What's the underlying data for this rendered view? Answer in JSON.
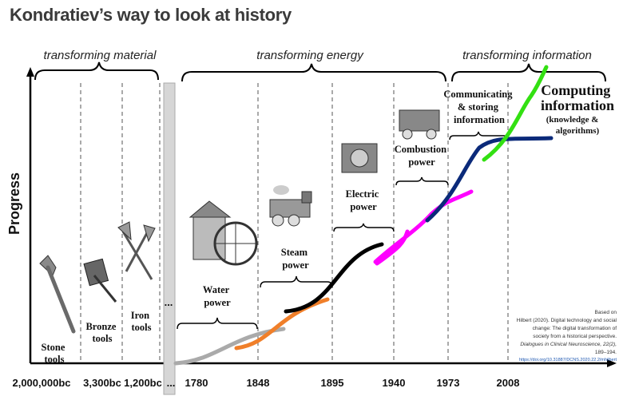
{
  "title": "Kondratiev’s way to look at history",
  "eras": [
    "transforming material",
    "transforming energy",
    "transforming information"
  ],
  "y_axis_label": "Progress",
  "x_ticks": [
    "2,000,000bc",
    "3,300bc",
    "1,200bc",
    "...",
    "1780",
    "1848",
    "1895",
    "1940",
    "1973",
    "2008"
  ],
  "labels": {
    "stone": [
      "Stone",
      "tools"
    ],
    "bronze": [
      "Bronze",
      "tools"
    ],
    "iron": [
      "Iron",
      "tools"
    ],
    "water": [
      "Water",
      "power"
    ],
    "steam": [
      "Steam",
      "power"
    ],
    "electric": [
      "Electric",
      "power"
    ],
    "combustion": [
      "Combustion",
      "power"
    ],
    "communicating": [
      "Communicating",
      "& storing",
      "information"
    ],
    "computing": [
      "Computing",
      "information"
    ],
    "computing_sub": [
      "(knowledge &",
      "algorithms)"
    ]
  },
  "ellipsis_mid": "...",
  "citation": {
    "lines": [
      "Based on",
      "Hilbert (2020). Digital technology and social",
      "change: The digital transformation of",
      "society from a historical perspective."
    ],
    "journal": "Dialogues in Clinical Neuroscience, 22(2),",
    "pages": "189–194.",
    "link": "https://doi.org/10.31887/DCNS.2020.22.2/mhilbert"
  },
  "wave_colors": [
    "#aaaaaa",
    "#f07f2a",
    "#000000",
    "#ff00ff",
    "#0b2a7a",
    "#33e012"
  ]
}
